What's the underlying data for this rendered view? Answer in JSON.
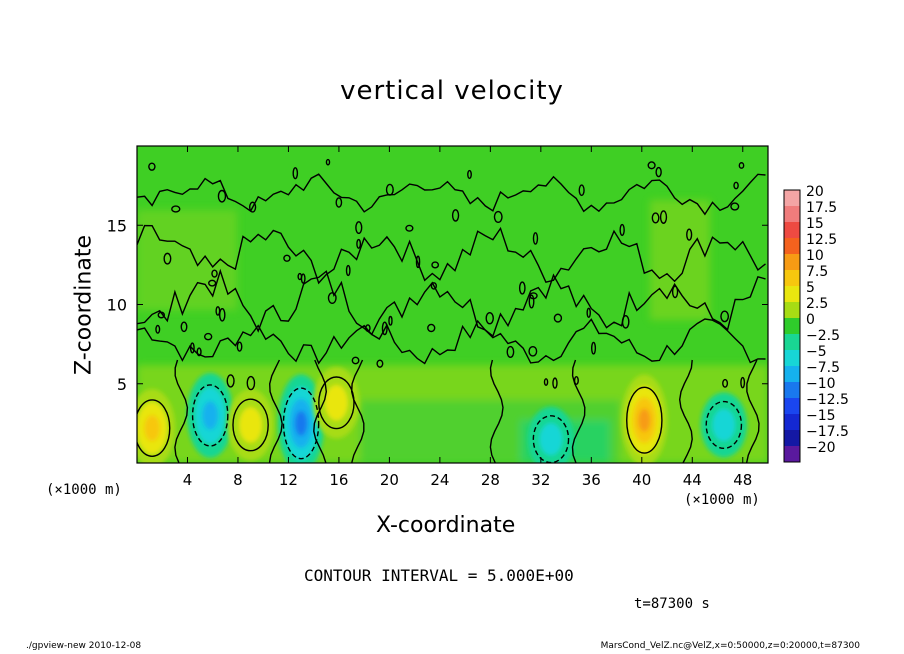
{
  "chart_data": {
    "type": "heatmap",
    "title": "vertical velocity",
    "xlabel": "X-coordinate",
    "ylabel": "Z-coordinate",
    "x_unit_left": "(×1000 m)",
    "x_unit_right": "(×1000 m)",
    "xlim": [
      0,
      50
    ],
    "ylim": [
      0,
      20
    ],
    "xticks": [
      "4",
      "8",
      "12",
      "16",
      "20",
      "24",
      "28",
      "32",
      "36",
      "40",
      "44",
      "48"
    ],
    "xtick_values": [
      4,
      8,
      12,
      16,
      20,
      24,
      28,
      32,
      36,
      40,
      44,
      48
    ],
    "yticks": [
      "5",
      "10",
      "15"
    ],
    "ytick_values": [
      5,
      10,
      15
    ],
    "colorbar": {
      "labels": [
        "20",
        "17.5",
        "15",
        "12.5",
        "10",
        "7.5",
        "5",
        "2.5",
        "0",
        "−2.5",
        "−5",
        "−7.5",
        "−10",
        "−12.5",
        "−15",
        "−17.5",
        "−20"
      ],
      "colors": [
        "#f4a5a5",
        "#f07c7c",
        "#ee4a42",
        "#f4621e",
        "#f79b14",
        "#f7c70e",
        "#e9e60f",
        "#a7dc14",
        "#2fcc2b",
        "#19d693",
        "#17d6d6",
        "#15b1ee",
        "#1978ee",
        "#1a46ef",
        "#1428d2",
        "#1418a4",
        "#5a199e"
      ]
    },
    "features": [
      {
        "kind": "updraft",
        "x": 1.2,
        "z": 2.2,
        "peak": 7
      },
      {
        "kind": "downdraft",
        "x": 5.8,
        "z": 3.0,
        "peak": -8
      },
      {
        "kind": "updraft",
        "x": 9.0,
        "z": 2.4,
        "peak": 6
      },
      {
        "kind": "downdraft",
        "x": 13.0,
        "z": 2.5,
        "peak": -10
      },
      {
        "kind": "updraft",
        "x": 15.8,
        "z": 3.8,
        "peak": 6
      },
      {
        "kind": "downdraft",
        "x": 32.8,
        "z": 1.5,
        "peak": -5
      },
      {
        "kind": "updraft",
        "x": 40.2,
        "z": 2.7,
        "peak": 9
      },
      {
        "kind": "downdraft",
        "x": 46.5,
        "z": 2.4,
        "peak": -5
      }
    ],
    "background": "0",
    "grid": false
  },
  "contour_interval": "CONTOUR INTERVAL = 5.000E+00",
  "time_label": "t=87300 s",
  "footer_left": "./gpview-new  2010-12-08",
  "footer_right": "MarsCond_VelZ.nc@VelZ,x=0:50000,z=0:20000,t=87300"
}
